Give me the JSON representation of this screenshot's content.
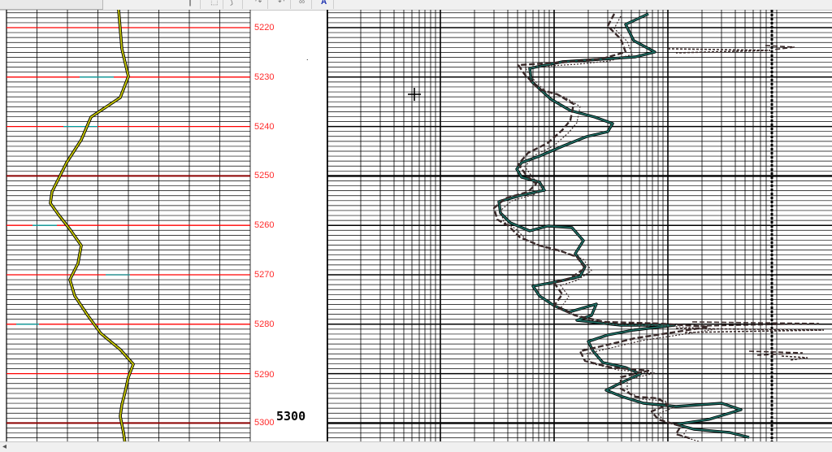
{
  "toolbar": {
    "buttons": [
      {
        "icon": "cursor-icon",
        "glyph": "┃"
      },
      {
        "icon": "select-rect-icon",
        "glyph": "⬚"
      },
      {
        "icon": "lasso-icon",
        "glyph": "⟆"
      },
      {
        "icon": "redo-icon",
        "glyph": "↷"
      },
      {
        "icon": "undo-icon",
        "glyph": "↶"
      },
      {
        "icon": "link-icon",
        "glyph": "∞"
      },
      {
        "icon": "text-tool-icon",
        "glyph": "A"
      }
    ]
  },
  "left_track": {
    "depth_labels": [
      "5220",
      "5230",
      "5240",
      "5250",
      "5260",
      "5270",
      "5280",
      "5290",
      "5300"
    ],
    "curve_color": "#c8c800",
    "major_line_color": "#8b0000",
    "minor_line_color": "#ff0000",
    "accent_line_color": "#00a0a0"
  },
  "annotation": {
    "depth_text": "5300",
    "marker": "."
  },
  "right_track": {
    "curve_colors": {
      "teal": "#1e6e64",
      "dark": "#3a2a2a"
    }
  },
  "scrollbar": {
    "arrow_icon": "scroll-left-icon",
    "arrow_glyph": "◂"
  }
}
